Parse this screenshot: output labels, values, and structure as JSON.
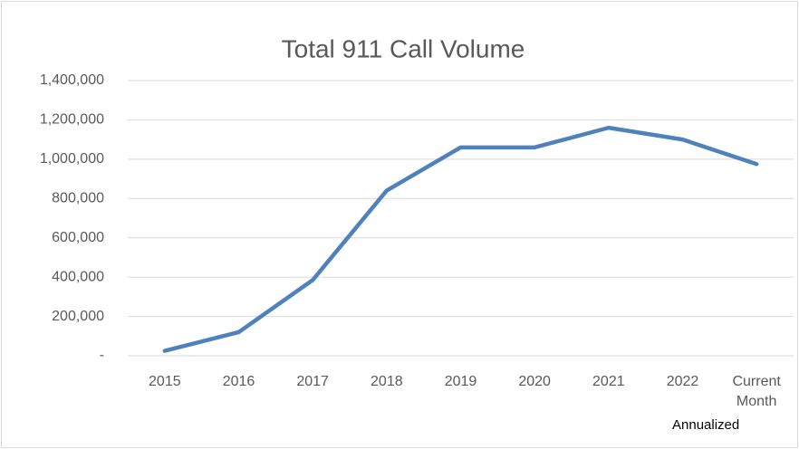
{
  "chart_data": {
    "type": "line",
    "title": "Total 911 Call Volume",
    "categories": [
      "2015",
      "2016",
      "2017",
      "2018",
      "2019",
      "2020",
      "2021",
      "2022",
      "Current Month"
    ],
    "series": [
      {
        "name": "Total 911 Call Volume",
        "color": "#4f81bd",
        "values": [
          25000,
          120000,
          385000,
          840000,
          1060000,
          1060000,
          1160000,
          1100000,
          975000
        ]
      }
    ],
    "ylim": [
      0,
      1400000
    ],
    "yticks": [
      {
        "value": 0,
        "label": "-"
      },
      {
        "value": 200000,
        "label": "200,000"
      },
      {
        "value": 400000,
        "label": "400,000"
      },
      {
        "value": 600000,
        "label": "600,000"
      },
      {
        "value": 800000,
        "label": "800,000"
      },
      {
        "value": 1000000,
        "label": "1,000,000"
      },
      {
        "value": 1200000,
        "label": "1,200,000"
      },
      {
        "value": 1400000,
        "label": "1,400,000"
      }
    ],
    "grid": true,
    "annotation": "Annualized"
  }
}
